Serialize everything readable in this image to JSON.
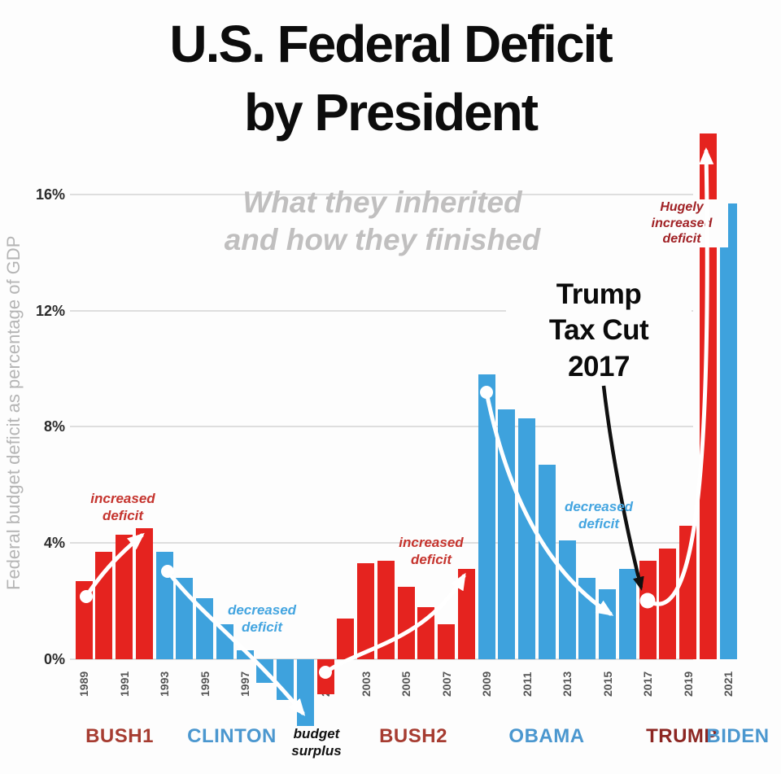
{
  "title": "U.S. Federal Deficit\nby President",
  "subtitle": "What they inherited\nand how they finished",
  "annotations": {
    "bush1_trend": "increased\ndeficit",
    "clinton_trend": "decreased\ndeficit",
    "budget_surplus": "budget\nsurplus",
    "bush2_trend": "increased\ndeficit",
    "obama_trend": "decreased\ndeficit",
    "trump_tax_cut": "Trump\nTax Cut\n2017",
    "trump_trend": "Hugely\nincreased\ndeficit"
  },
  "presidents": [
    {
      "name": "BUSH1",
      "color": "#a63c31"
    },
    {
      "name": "CLINTON",
      "color": "#4b97cf"
    },
    {
      "name": "BUSH2",
      "color": "#a63c31"
    },
    {
      "name": "OBAMA",
      "color": "#4b97cf"
    },
    {
      "name": "TRUMP",
      "color": "#8c2622"
    },
    {
      "name": "BIDEN",
      "color": "#4b97cf"
    }
  ],
  "chart_data": {
    "type": "bar",
    "title": "U.S. Federal Deficit by President",
    "subtitle": "What they inherited and how they finished",
    "ylabel": "Federal budget deficit as percentage of GDP",
    "unit": "% of GDP",
    "ylim": [
      -2.6,
      18.5
    ],
    "y_ticks": [
      0,
      4,
      8,
      12,
      16
    ],
    "grid": true,
    "legend": "none",
    "x": [
      1989,
      1990,
      1991,
      1992,
      1993,
      1994,
      1995,
      1996,
      1997,
      1998,
      1999,
      2000,
      2001,
      2002,
      2003,
      2004,
      2005,
      2006,
      2007,
      2008,
      2009,
      2010,
      2011,
      2012,
      2013,
      2014,
      2015,
      2016,
      2017,
      2018,
      2019,
      2020,
      2021
    ],
    "values": [
      2.7,
      3.7,
      4.3,
      4.5,
      3.7,
      2.8,
      2.1,
      1.2,
      0.3,
      -0.8,
      -1.4,
      -2.3,
      -1.2,
      1.4,
      3.3,
      3.4,
      2.5,
      1.8,
      1.2,
      3.1,
      9.8,
      8.6,
      8.3,
      6.7,
      4.1,
      2.8,
      2.4,
      3.1,
      3.4,
      3.8,
      4.6,
      18.1,
      15.7
    ],
    "parties": [
      "R",
      "R",
      "R",
      "R",
      "D",
      "D",
      "D",
      "D",
      "D",
      "D",
      "D",
      "D",
      "R",
      "R",
      "R",
      "R",
      "R",
      "R",
      "R",
      "R",
      "D",
      "D",
      "D",
      "D",
      "D",
      "D",
      "D",
      "D",
      "R",
      "R",
      "R",
      "R",
      "D"
    ],
    "colors": {
      "R": "#e5231f",
      "D": "#3ea2dd"
    },
    "labeled_years": [
      1989,
      1991,
      1993,
      1995,
      1997,
      1999,
      2001,
      2003,
      2005,
      2007,
      2009,
      2011,
      2013,
      2015,
      2017,
      2019,
      2021
    ]
  }
}
